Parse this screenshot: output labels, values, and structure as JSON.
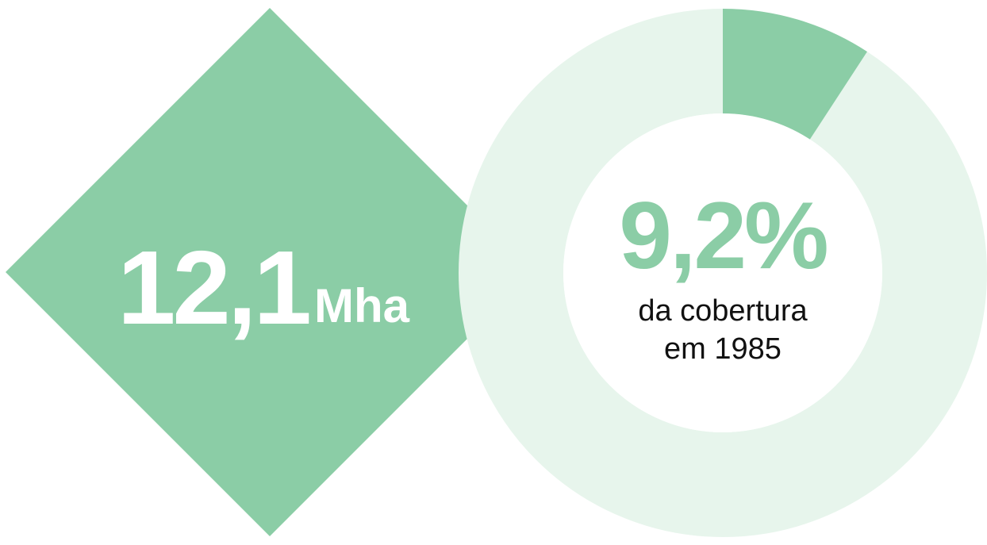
{
  "highlight": {
    "value": "12,1",
    "unit": "Mha"
  },
  "chart_data": {
    "type": "donut",
    "values": [
      9.2
    ],
    "value_labels": [
      "9,2%"
    ],
    "color": "#8bcda6",
    "track_color": "#e7f5ec",
    "annotations": [
      "da cobertura",
      "em 1985"
    ]
  }
}
